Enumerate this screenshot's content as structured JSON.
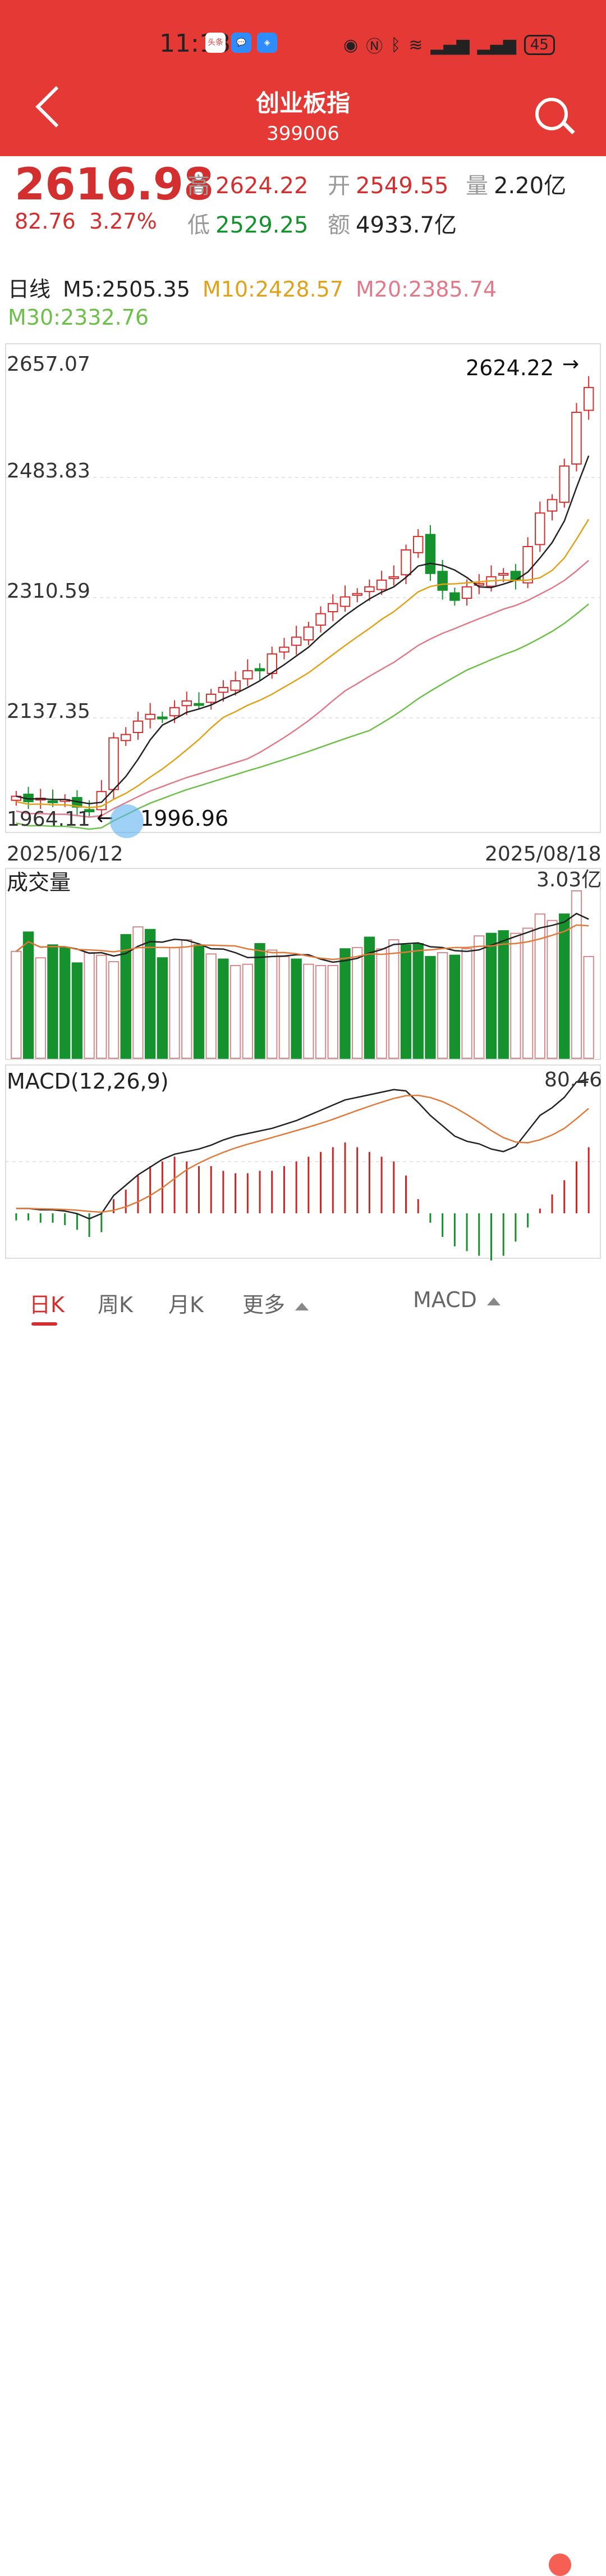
{
  "status_bar": {
    "time": "11:18",
    "battery": "45",
    "app_badges": [
      "头条",
      "💬",
      "◈"
    ]
  },
  "nav": {
    "title": "创业板指",
    "code": "399006"
  },
  "quote": {
    "price": "2616.98",
    "change": "82.76",
    "change_pct": "3.27%",
    "high_label": "高",
    "high": "2624.22",
    "open_label": "开",
    "open": "2549.55",
    "vol_label": "量",
    "vol": "2.20亿",
    "low_label": "低",
    "low": "2529.25",
    "amount_label": "额",
    "amount": "4933.7亿"
  },
  "ma_legend": {
    "period": "日线",
    "m5": "M5:2505.35",
    "m10": "M10:2428.57",
    "m20": "M20:2385.74",
    "m30": "M30:2332.76",
    "colors": {
      "m5": "#222222",
      "m10": "#e0a21a",
      "m20": "#e07a8a",
      "m30": "#6cc04a"
    }
  },
  "chart_labels": {
    "y_ticks": [
      "2657.07",
      "2483.83",
      "2310.59",
      "2137.35",
      "1964.11"
    ],
    "high_marker": "2624.22",
    "low_marker": "1996.96",
    "start_date": "2025/06/12",
    "end_date": "2025/08/18",
    "volume_title": "成交量",
    "volume_max": "3.03亿",
    "macd_title": "MACD(12,26,9)",
    "macd_max": "80.46"
  },
  "chart_data": {
    "type": "candlestick",
    "y_range": [
      1964.11,
      2657.07
    ],
    "closes": [
      2008,
      2000,
      2005,
      2000,
      2003,
      1992,
      1985,
      2015,
      2095,
      2100,
      2120,
      2130,
      2125,
      2140,
      2150,
      2145,
      2160,
      2170,
      2180,
      2195,
      2195,
      2220,
      2230,
      2245,
      2260,
      2280,
      2295,
      2305,
      2310,
      2320,
      2330,
      2335,
      2375,
      2395,
      2340,
      2315,
      2300,
      2320,
      2325,
      2335,
      2340,
      2330,
      2380,
      2430,
      2450,
      2500,
      2580,
      2617
    ],
    "vol_bars": [
      0.83,
      0.98,
      0.78,
      0.88,
      0.86,
      0.74,
      0.82,
      0.8,
      0.75,
      0.96,
      1.02,
      1.0,
      0.78,
      0.86,
      0.92,
      0.88,
      0.81,
      0.77,
      0.72,
      0.73,
      0.89,
      0.84,
      0.79,
      0.77,
      0.73,
      0.72,
      0.72,
      0.85,
      0.86,
      0.94,
      0.85,
      0.92,
      0.88,
      0.89,
      0.79,
      0.82,
      0.8,
      0.85,
      0.95,
      0.97,
      0.99,
      0.97,
      1.01,
      1.12,
      1.07,
      1.12,
      1.3,
      0.79
    ],
    "vol_up": [
      true,
      false,
      true,
      false,
      false,
      false,
      true,
      true,
      true,
      false,
      true,
      false,
      false,
      true,
      true,
      false,
      true,
      false,
      true,
      true,
      false,
      true,
      true,
      false,
      true,
      true,
      true,
      false,
      true,
      false,
      true,
      true,
      false,
      false,
      false,
      true,
      false,
      true,
      true,
      false,
      false,
      true,
      true,
      true,
      true,
      false,
      true,
      true
    ],
    "macd_dif": [
      -18,
      -18,
      -19,
      -19,
      -20,
      -22,
      -26,
      -22,
      -8,
      0,
      8,
      14,
      20,
      24,
      26,
      28,
      31,
      35,
      38,
      40,
      42,
      44,
      47,
      50,
      54,
      58,
      62,
      66,
      68,
      70,
      72,
      74,
      73,
      64,
      54,
      46,
      38,
      34,
      32,
      28,
      26,
      30,
      42,
      54,
      60,
      68,
      80,
      82
    ],
    "macd_hist": [
      -3,
      -3,
      -4,
      -4,
      -5,
      -7,
      -10,
      -8,
      6,
      10,
      16,
      20,
      22,
      24,
      22,
      20,
      20,
      18,
      17,
      17,
      18,
      18,
      20,
      22,
      24,
      26,
      28,
      30,
      28,
      26,
      24,
      22,
      16,
      6,
      -4,
      -10,
      -14,
      -16,
      -18,
      -20,
      -18,
      -12,
      -6,
      2,
      8,
      14,
      22,
      28
    ]
  },
  "bottom_tabs": [
    "日K",
    "周K",
    "月K",
    "更多",
    "MACD"
  ]
}
